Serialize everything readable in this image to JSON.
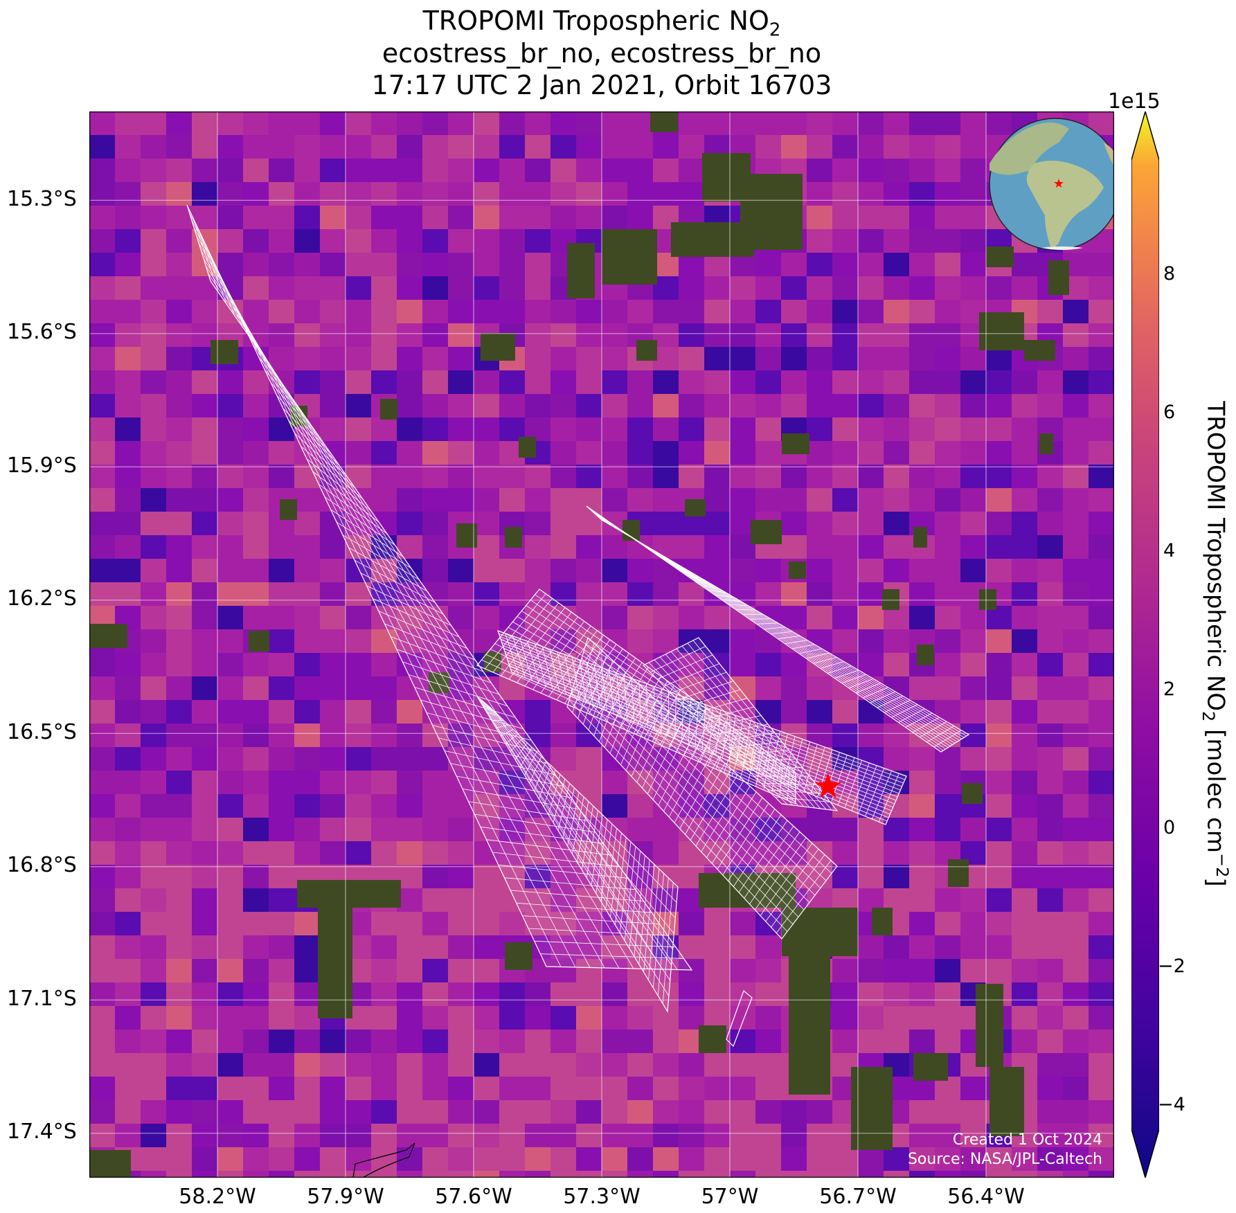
{
  "title": {
    "line1": "TROPOMI Tropospheric NO",
    "line1_sub": "2",
    "line2": "ecostress_br_no, ecostress_br_no",
    "line3": "17:17 UTC 2 Jan 2021, Orbit 16703"
  },
  "map": {
    "type": "map",
    "extent": {
      "lon_min": -58.5,
      "lon_max": -56.1,
      "lat_min": -17.5,
      "lat_max": -15.1
    },
    "lat_ticks": [
      "15.3°S",
      "15.6°S",
      "15.9°S",
      "16.2°S",
      "16.5°S",
      "16.8°S",
      "17.1°S",
      "17.4°S"
    ],
    "lat_values": [
      -15.3,
      -15.6,
      -15.9,
      -16.2,
      -16.5,
      -16.8,
      -17.1,
      -17.4
    ],
    "lon_ticks": [
      "58.2°W",
      "57.9°W",
      "57.6°W",
      "57.3°W",
      "57°W",
      "56.7°W",
      "56.4°W"
    ],
    "lon_values": [
      -58.2,
      -57.9,
      -57.6,
      -57.3,
      -57.0,
      -56.7,
      -56.4
    ],
    "gridlines": true,
    "target_marker": {
      "symbol": "star",
      "color": "#ff0000",
      "lon": -56.77,
      "lat": -16.62
    },
    "basemap_colors": {
      "vegetation": "#3f4a22",
      "pixel_mid": "#a523a8"
    },
    "inset_globe": {
      "position": "top-right",
      "marker_color": "#ff0000",
      "ocean": "#5f9fc4",
      "land": "#a9b98a"
    }
  },
  "colorbar": {
    "label": "TROPOMI Tropospheric NO",
    "label_sub": "2",
    "label_units": " [molec cm",
    "label_units_sup": "−2",
    "label_end": "]",
    "exponent": "1e15",
    "vmin": -5,
    "vmax": 10,
    "ticks": [
      "8",
      "6",
      "4",
      "2",
      "0",
      "−2",
      "−4"
    ],
    "tick_values": [
      8,
      6,
      4,
      2,
      0,
      -2,
      -4
    ],
    "colormap": "plasma",
    "extend": "both"
  },
  "credits": {
    "created": "Created 1 Oct 2024",
    "source": "Source: NASA/JPL-Caltech"
  }
}
